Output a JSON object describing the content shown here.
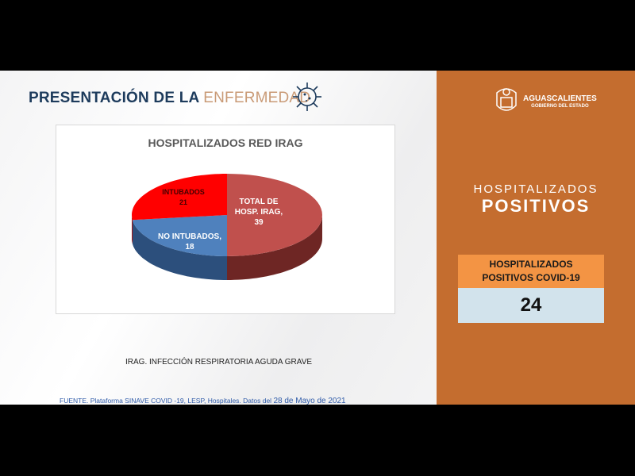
{
  "slide": {
    "title_main": "PRESENTACIÓN DE LA",
    "title_accent": "ENFERMEDAD",
    "note": "IRAG. INFECCIÓN RESPIRATORIA AGUDA GRAVE",
    "source_prefix": "FUENTE. Plataforma SINAVE COVID -19, LESP, Hospitales. Datos del ",
    "source_date": "28 de Mayo de 2021"
  },
  "chart_data": {
    "type": "pie",
    "title": "HOSPITALIZADOS RED IRAG",
    "slices": [
      {
        "label": "TOTAL DE HOSP. IRAG",
        "value": 39,
        "color": "#c0504d",
        "side_color": "#6e2624",
        "text": [
          "TOTAL DE",
          "HOSP. IRAG,",
          "39"
        ]
      },
      {
        "label": "NO INTUBADOS",
        "value": 18,
        "color": "#4f81bd",
        "side_color": "#2c4f7c",
        "text": [
          "NO INTUBADOS,",
          "18"
        ]
      },
      {
        "label": "INTUBADOS",
        "value": 21,
        "color": "#ff0000",
        "side_color": "#a00000",
        "text": [
          "INTUBADOS",
          "21"
        ]
      }
    ],
    "style": "3d"
  },
  "panel": {
    "brand": "AGUASCALIENTES",
    "brand_sub": "GOBIERNO DEL ESTADO",
    "heading_light": "HOSPITALIZADOS",
    "heading_bold": "POSITIVOS",
    "card_label_1": "HOSPITALIZADOS",
    "card_label_2": "POSITIVOS COVID-19",
    "card_value": "24",
    "color": "#c46d2f"
  }
}
